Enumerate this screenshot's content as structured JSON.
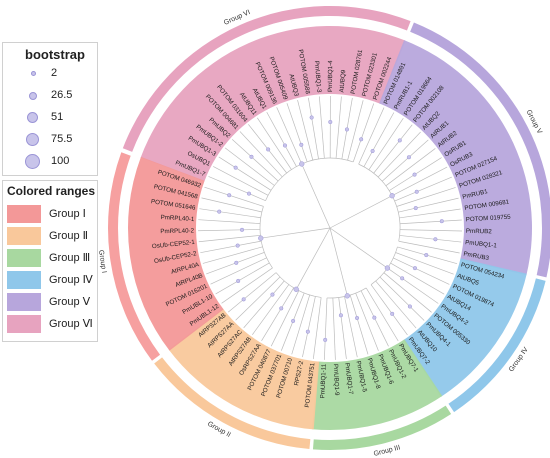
{
  "legend": {
    "bootstrap_title": "bootstrap",
    "bootstrap_values": [
      "2",
      "26.5",
      "51",
      "75.5",
      "100"
    ],
    "ranges_title": "Colored ranges",
    "groups": [
      {
        "label": "Group Ⅰ",
        "color": "#f39898"
      },
      {
        "label": "Group Ⅱ",
        "color": "#f9c89b"
      },
      {
        "label": "Group Ⅲ",
        "color": "#a8d8a0"
      },
      {
        "label": "Group Ⅳ",
        "color": "#8fc7ea"
      },
      {
        "label": "Group Ⅴ",
        "color": "#b7a6dc"
      },
      {
        "label": "Group Ⅵ",
        "color": "#e7a3bf"
      }
    ]
  },
  "outer_labels": {
    "g1": "Group I",
    "g2": "Group II",
    "g3": "Group III",
    "g4": "Group IV",
    "g5": "Group V",
    "g6": "Group VI"
  },
  "leaves": [
    {
      "label": "PmUBQ1-7",
      "group": 6
    },
    {
      "label": "OsUBQ1",
      "group": 6
    },
    {
      "label": "PmUBQ1-3",
      "group": 6
    },
    {
      "label": "PmUBQ1-2",
      "group": 6
    },
    {
      "label": "PmUBQ2",
      "group": 6
    },
    {
      "label": "POTOM 004681",
      "group": 6
    },
    {
      "label": "POTOM 031604",
      "group": 6
    },
    {
      "label": "AtUBQ11",
      "group": 6
    },
    {
      "label": "AtUBQ1",
      "group": 6
    },
    {
      "label": "POTOM 009136",
      "group": 6
    },
    {
      "label": "POTOM 005409",
      "group": 6
    },
    {
      "label": "AtUBQ3",
      "group": 6
    },
    {
      "label": "POTOM 005588",
      "group": 6
    },
    {
      "label": "PmUBQ1-3",
      "group": 6
    },
    {
      "label": "PmUBQ1-4",
      "group": 6
    },
    {
      "label": "AtUBQ9",
      "group": 6
    },
    {
      "label": "POTOM 028761",
      "group": 6
    },
    {
      "label": "POTOM 023301",
      "group": 6
    },
    {
      "label": "POTOM 002244",
      "group": 6
    },
    {
      "label": "POTOM 014891",
      "group": 5
    },
    {
      "label": "PmRUB1-1",
      "group": 5
    },
    {
      "label": "POTOM 019664",
      "group": 5
    },
    {
      "label": "POTOM 002108",
      "group": 5
    },
    {
      "label": "AtUBQ2",
      "group": 5
    },
    {
      "label": "AtRUB1",
      "group": 5
    },
    {
      "label": "AtRUB2",
      "group": 5
    },
    {
      "label": "OsRUB1",
      "group": 5
    },
    {
      "label": "OsRUB3",
      "group": 5
    },
    {
      "label": "POTOM 027154",
      "group": 5
    },
    {
      "label": "POTOM 028321",
      "group": 5
    },
    {
      "label": "PmRUB1",
      "group": 5
    },
    {
      "label": "POTOM 009681",
      "group": 5
    },
    {
      "label": "POTOM 019755",
      "group": 5
    },
    {
      "label": "PmRUB2",
      "group": 5
    },
    {
      "label": "PmUBQ1-1",
      "group": 5
    },
    {
      "label": "PmRUB3",
      "group": 5
    },
    {
      "label": "POTOM 054234",
      "group": 4
    },
    {
      "label": "AtUBQ5",
      "group": 4
    },
    {
      "label": "POTOM 019874",
      "group": 4
    },
    {
      "label": "AtUBQ14",
      "group": 4
    },
    {
      "label": "PmUBQ4-2",
      "group": 4
    },
    {
      "label": "POTOM 005330",
      "group": 4
    },
    {
      "label": "PmUBQ4-1",
      "group": 4
    },
    {
      "label": "AtUBQ10",
      "group": 4
    },
    {
      "label": "PmUBQ7-2",
      "group": 4
    },
    {
      "label": "PmUBQ7-1",
      "group": 3
    },
    {
      "label": "PmUBQ1-2",
      "group": 3
    },
    {
      "label": "PmUBQ1-6",
      "group": 3
    },
    {
      "label": "PmUBQ1-8",
      "group": 3
    },
    {
      "label": "PmUBQ1-5",
      "group": 3
    },
    {
      "label": "PmUBQ1-7",
      "group": 3
    },
    {
      "label": "PmUBQ1-9",
      "group": 3
    },
    {
      "label": "PmUBQ1-11",
      "group": 3
    },
    {
      "label": "POTOM 043751",
      "group": 2
    },
    {
      "label": "RPS27-2",
      "group": 2
    },
    {
      "label": "POTOM 00710",
      "group": 2
    },
    {
      "label": "POTOM 037701",
      "group": 2
    },
    {
      "label": "POTOM 040877",
      "group": 2
    },
    {
      "label": "OsRPS27AA",
      "group": 2
    },
    {
      "label": "AtRPS27AB",
      "group": 2
    },
    {
      "label": "AtRPS27AC",
      "group": 2
    },
    {
      "label": "AtRPS27AA",
      "group": 2
    },
    {
      "label": "AtRPS27AB",
      "group": 2
    },
    {
      "label": "PmUBL1-12",
      "group": 1
    },
    {
      "label": "PmUBL1-10",
      "group": 1
    },
    {
      "label": "POTOM 016201",
      "group": 1
    },
    {
      "label": "AtRPL40B",
      "group": 1
    },
    {
      "label": "AtRPL40A",
      "group": 1
    },
    {
      "label": "OsUb-CEP52-2",
      "group": 1
    },
    {
      "label": "OsUb-CEP52-1",
      "group": 1
    },
    {
      "label": "PmRPL40-2",
      "group": 1
    },
    {
      "label": "PmRPL40-1",
      "group": 1
    },
    {
      "label": "POTOM 051646",
      "group": 1
    },
    {
      "label": "POTOM 041568",
      "group": 1
    },
    {
      "label": "POTOM 046932",
      "group": 1
    }
  ]
}
